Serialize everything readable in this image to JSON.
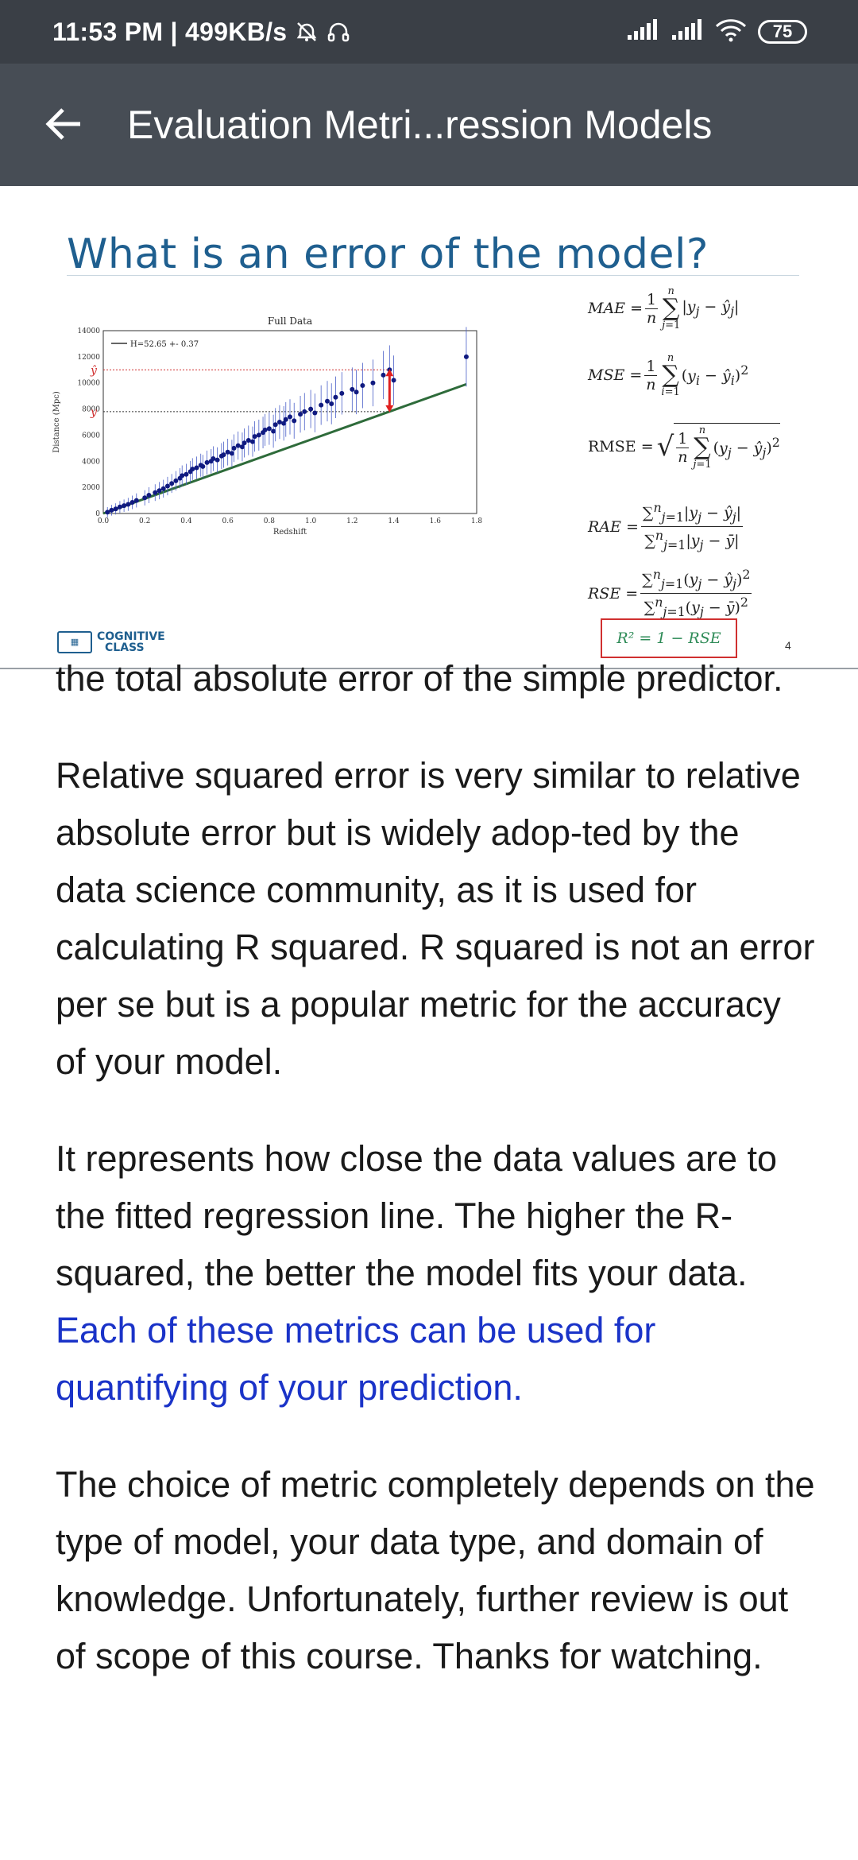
{
  "status_bar": {
    "time_speed": "11:53 PM | 499KB/s",
    "battery": "75"
  },
  "app_bar": {
    "title": "Evaluation Metri...ression Models"
  },
  "slide": {
    "title": "What is an error of the model?",
    "page_number": "4",
    "logo_text_line1": "COGNITIVE",
    "logo_text_line2": "CLASS",
    "chart_data": {
      "type": "scatter",
      "title": "Full Data",
      "xlabel": "Redshift",
      "ylabel": "Distance (Mpc)",
      "xlim": [
        0.0,
        1.8
      ],
      "ylim": [
        0,
        14000
      ],
      "xticks": [
        "0.0",
        "0.2",
        "0.4",
        "0.6",
        "0.8",
        "1.0",
        "1.2",
        "1.4",
        "1.6",
        "1.8"
      ],
      "yticks": [
        "0",
        "2000",
        "4000",
        "6000",
        "8000",
        "10000",
        "12000",
        "14000"
      ],
      "legend": "H=52.65 +- 0.37",
      "legend_position": "top-left",
      "fit_line": {
        "x": [
          0.0,
          1.75
        ],
        "y": [
          0,
          9900
        ]
      },
      "y_label_marker": "y",
      "yhat_label_marker": "ŷ",
      "y_level": 7800,
      "yhat_level": 11000,
      "series": [
        {
          "points": [
            [
              0.02,
              100
            ],
            [
              0.04,
              250
            ],
            [
              0.06,
              350
            ],
            [
              0.08,
              500
            ],
            [
              0.1,
              600
            ],
            [
              0.12,
              700
            ],
            [
              0.14,
              850
            ],
            [
              0.16,
              1000
            ],
            [
              0.2,
              1200
            ],
            [
              0.22,
              1400
            ],
            [
              0.25,
              1600
            ],
            [
              0.27,
              1750
            ],
            [
              0.29,
              1900
            ],
            [
              0.31,
              2100
            ],
            [
              0.33,
              2300
            ],
            [
              0.35,
              2500
            ],
            [
              0.37,
              2700
            ],
            [
              0.38,
              2900
            ],
            [
              0.4,
              3000
            ],
            [
              0.42,
              3200
            ],
            [
              0.43,
              3400
            ],
            [
              0.45,
              3500
            ],
            [
              0.47,
              3700
            ],
            [
              0.48,
              3600
            ],
            [
              0.5,
              3900
            ],
            [
              0.52,
              4000
            ],
            [
              0.53,
              4200
            ],
            [
              0.55,
              4100
            ],
            [
              0.57,
              4400
            ],
            [
              0.58,
              4500
            ],
            [
              0.6,
              4700
            ],
            [
              0.62,
              4600
            ],
            [
              0.63,
              5000
            ],
            [
              0.65,
              5200
            ],
            [
              0.67,
              5100
            ],
            [
              0.68,
              5400
            ],
            [
              0.7,
              5600
            ],
            [
              0.72,
              5500
            ],
            [
              0.73,
              5900
            ],
            [
              0.75,
              6000
            ],
            [
              0.77,
              6200
            ],
            [
              0.78,
              6400
            ],
            [
              0.8,
              6500
            ],
            [
              0.82,
              6300
            ],
            [
              0.83,
              6800
            ],
            [
              0.85,
              7000
            ],
            [
              0.87,
              6900
            ],
            [
              0.88,
              7200
            ],
            [
              0.9,
              7400
            ],
            [
              0.92,
              7100
            ],
            [
              0.95,
              7600
            ],
            [
              0.97,
              7800
            ],
            [
              1.0,
              8000
            ],
            [
              1.02,
              7700
            ],
            [
              1.05,
              8300
            ],
            [
              1.08,
              8600
            ],
            [
              1.1,
              8400
            ],
            [
              1.12,
              8900
            ],
            [
              1.15,
              9200
            ],
            [
              1.2,
              9500
            ],
            [
              1.22,
              9300
            ],
            [
              1.25,
              9800
            ],
            [
              1.3,
              10000
            ],
            [
              1.35,
              10600
            ],
            [
              1.38,
              11000
            ],
            [
              1.4,
              10200
            ],
            [
              1.75,
              12000
            ]
          ]
        }
      ]
    },
    "formulas": {
      "mae_label": "MAE",
      "mse_label": "MSE",
      "rmse_label": "RMSE",
      "rae_label": "RAE",
      "rse_label": "RSE",
      "r2": "R² = 1 − RSE"
    }
  },
  "article": {
    "p0": "the total absolute error of the simple predictor.",
    "p1": "Relative squared error is very similar to relative absolute error but is widely adop-ted by the data science community, as it is used for calculating R squared. R squared is not an error per se but is a popular metric for the accuracy of your model.",
    "p2_text": "It represents how close the data values are to the fitted regression line. The higher the R-squared, the better the model fits your data. ",
    "p2_link": "Each of these metrics can be used for quantifying of your prediction.",
    "p3": "The choice of metric completely depends on the type of model, your data type, and domain of knowledge. Unfortunately, further review is out of scope of this course. Thanks for watching."
  },
  "colors": {
    "status_bar": "#3a3f46",
    "app_bar": "#474d55",
    "slide_title": "#1f5f8f",
    "link": "#1a33c8",
    "fit_line": "#2e6b3a",
    "highlight": "#d03030"
  }
}
